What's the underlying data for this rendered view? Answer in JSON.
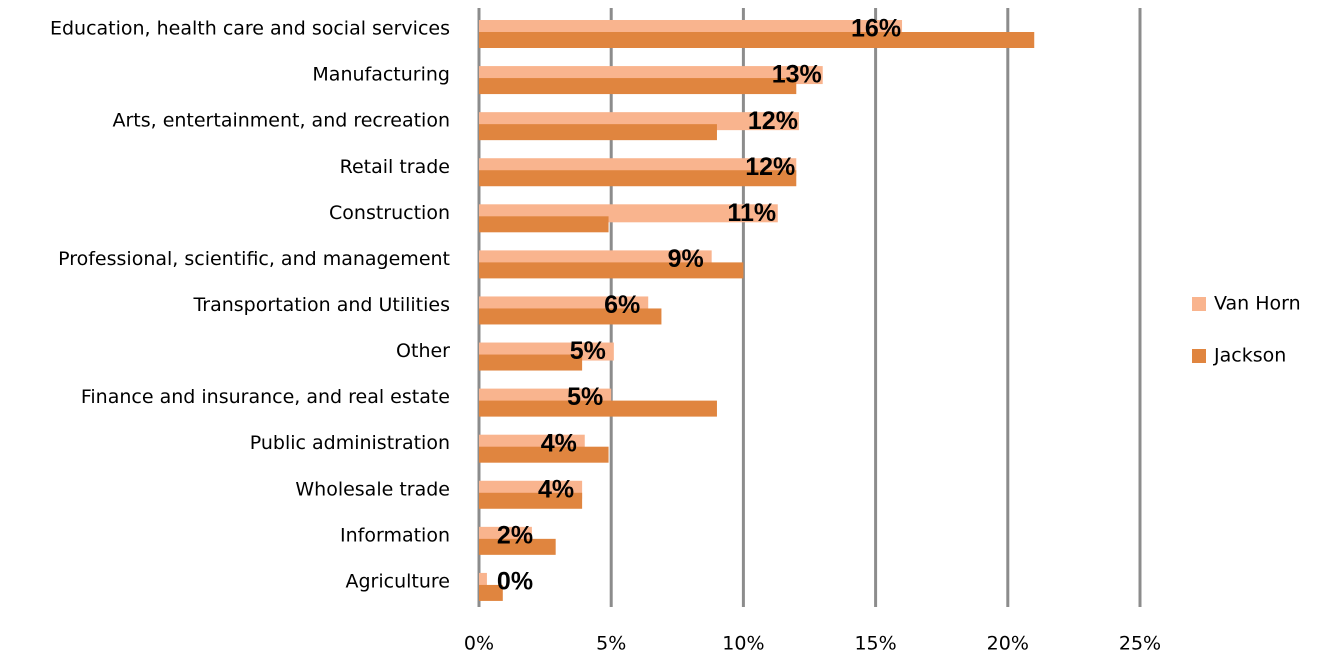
{
  "chart_data": {
    "type": "barh",
    "categories": [
      "Education, health care and social services",
      "Manufacturing",
      "Arts, entertainment, and recreation",
      "Retail trade",
      "Construction",
      "Professional, scientific, and management",
      "Transportation and Utilities",
      "Other",
      "Finance and insurance, and real estate",
      "Public administration",
      "Wholesale trade",
      "Information",
      "Agriculture"
    ],
    "series": [
      {
        "name": "Van Horn",
        "color": "#f9b48e",
        "values": [
          16.0,
          13.0,
          12.1,
          12.0,
          11.3,
          8.8,
          6.4,
          5.1,
          5.0,
          4.0,
          3.9,
          2.0,
          0.3
        ],
        "value_labels": [
          "16%",
          "13%",
          "12%",
          "12%",
          "11%",
          "9%",
          "6%",
          "5%",
          "5%",
          "4%",
          "4%",
          "2%",
          "0%"
        ]
      },
      {
        "name": "Jackson",
        "color": "#e0853f",
        "values": [
          21.0,
          12.0,
          9.0,
          12.0,
          4.9,
          10.0,
          6.9,
          3.9,
          9.0,
          4.9,
          3.9,
          2.9,
          0.9
        ]
      }
    ],
    "xlim": [
      0,
      25
    ],
    "xticks": [
      {
        "value": 0,
        "label": "0%"
      },
      {
        "value": 5,
        "label": "5%"
      },
      {
        "value": 10,
        "label": "10%"
      },
      {
        "value": 15,
        "label": "15%"
      },
      {
        "value": 20,
        "label": "20%"
      },
      {
        "value": 25,
        "label": "25%"
      }
    ],
    "grid": true,
    "legend": "right"
  }
}
